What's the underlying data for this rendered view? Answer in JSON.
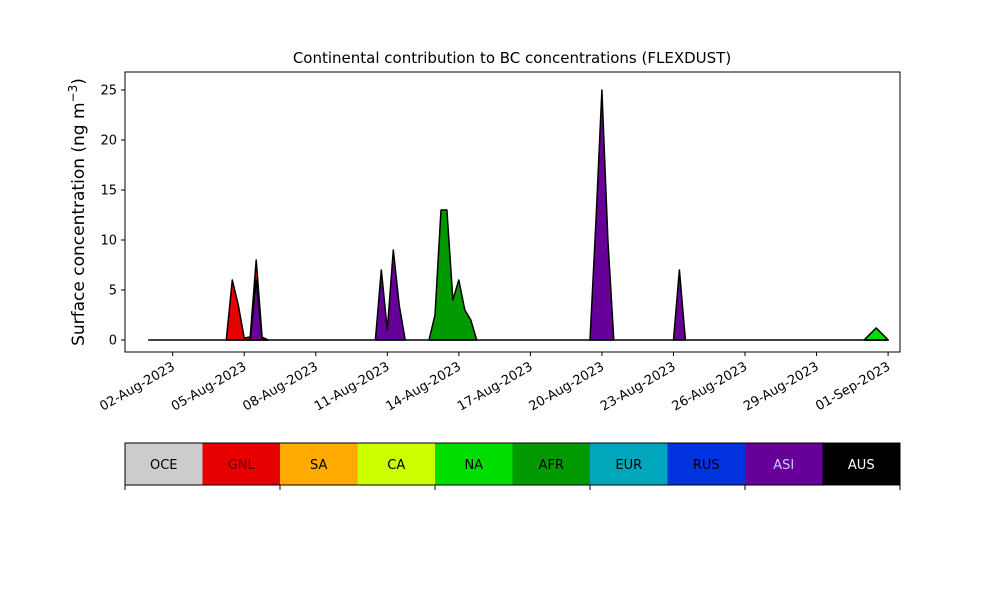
{
  "chart_data": {
    "type": "area",
    "stacked": true,
    "title": "Continental contribution to BC concentrations (FLEXDUST)",
    "ylabel": "Surface concentration (ng m",
    "ylabel_sup": "−3",
    "ylabel_close": ")",
    "xlim": [
      "2023-07-31",
      "2023-09-01T12:00"
    ],
    "ylim": [
      -1.2,
      26.8
    ],
    "yticks": [
      0,
      5,
      10,
      15,
      20,
      25
    ],
    "ytick_labels": [
      "0",
      "5",
      "10",
      "15",
      "20",
      "25"
    ],
    "xticks": [
      "2023-08-02",
      "2023-08-05",
      "2023-08-08",
      "2023-08-11",
      "2023-08-14",
      "2023-08-17",
      "2023-08-20",
      "2023-08-23",
      "2023-08-26",
      "2023-08-29",
      "2023-09-01"
    ],
    "xtick_labels": [
      "02-Aug-2023",
      "05-Aug-2023",
      "08-Aug-2023",
      "11-Aug-2023",
      "14-Aug-2023",
      "17-Aug-2023",
      "20-Aug-2023",
      "23-Aug-2023",
      "26-Aug-2023",
      "29-Aug-2023",
      "01-Sep-2023"
    ],
    "legend": {
      "placement": "below",
      "categories": [
        "OCE",
        "GNL",
        "SA",
        "CA",
        "NA",
        "AFR",
        "EUR",
        "RUS",
        "ASI",
        "AUS"
      ],
      "colors": [
        "#cccccc",
        "#e60000",
        "#ffaa00",
        "#ccff00",
        "#00dd00",
        "#009900",
        "#00a6bb",
        "#0033dd",
        "#660099",
        "#000000"
      ],
      "text_colors": [
        "#000000",
        "#660000",
        "#000000",
        "#000000",
        "#000000",
        "#000000",
        "#000000",
        "#000000",
        "#ccccff",
        "#ffffff"
      ]
    },
    "series": [
      {
        "name": "GNL",
        "color": "#e60000",
        "x": [
          "2023-08-04T06:00",
          "2023-08-04T12:00",
          "2023-08-04T18:00",
          "2023-08-05T00:00",
          "2023-08-05T06:00",
          "2023-08-05T12:00",
          "2023-08-05T18:00",
          "2023-08-06T00:00"
        ],
        "values": [
          0,
          6.0,
          3.5,
          0.2,
          0.3,
          8.0,
          0.3,
          0
        ]
      },
      {
        "name": "CA",
        "color": "#ccff00",
        "x": [
          "2023-08-31T00:00",
          "2023-08-31T06:00",
          "2023-08-31T12:00",
          "2023-08-31T18:00",
          "2023-09-01T00:00"
        ],
        "values": [
          0,
          0.6,
          1.2,
          0.6,
          0
        ]
      },
      {
        "name": "NA",
        "color": "#00dd00",
        "x": [
          "2023-08-31T00:00",
          "2023-08-31T06:00",
          "2023-08-31T12:00",
          "2023-08-31T18:00",
          "2023-09-01T00:00"
        ],
        "values": [
          0,
          0.6,
          1.2,
          0.6,
          0
        ]
      },
      {
        "name": "AFR",
        "color": "#009900",
        "x": [
          "2023-08-12T18:00",
          "2023-08-13T00:00",
          "2023-08-13T06:00",
          "2023-08-13T12:00",
          "2023-08-13T18:00",
          "2023-08-14T00:00",
          "2023-08-14T06:00",
          "2023-08-14T12:00",
          "2023-08-14T18:00"
        ],
        "values": [
          0,
          2.5,
          13.0,
          13.0,
          4.0,
          6.0,
          3.0,
          2.0,
          0
        ]
      },
      {
        "name": "ASI",
        "color": "#660099",
        "x": [
          "2023-08-05T06:00",
          "2023-08-05T12:00",
          "2023-08-05T18:00",
          "2023-08-10T12:00",
          "2023-08-10T18:00",
          "2023-08-11T00:00",
          "2023-08-11T06:00",
          "2023-08-11T12:00",
          "2023-08-11T18:00",
          "2023-08-19T12:00",
          "2023-08-19T18:00",
          "2023-08-20T00:00",
          "2023-08-20T06:00",
          "2023-08-20T12:00",
          "2023-08-23T00:00",
          "2023-08-23T06:00",
          "2023-08-23T12:00"
        ],
        "values": [
          0,
          6.0,
          0,
          0,
          7.0,
          1.0,
          9.0,
          3.5,
          0,
          0,
          12.0,
          25.0,
          10.0,
          0,
          0,
          7.0,
          0
        ]
      },
      {
        "name": "AUS",
        "color": "#000000",
        "x": [
          "2023-08-01T00:00",
          "2023-09-01T00:00"
        ],
        "values": [
          0,
          0
        ]
      }
    ]
  }
}
